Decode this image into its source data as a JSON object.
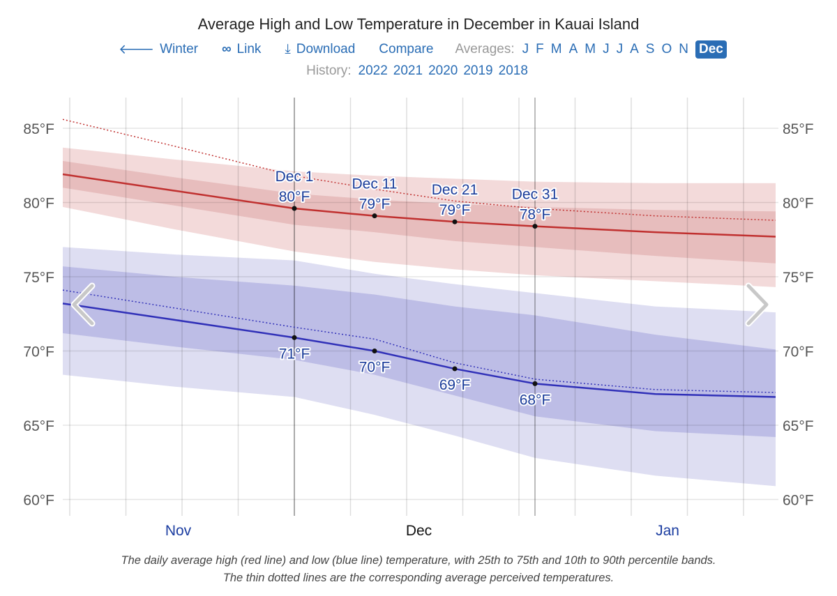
{
  "header": {
    "title": "Average High and Low Temperature in December in Kauai Island",
    "nav": {
      "winter": "Winter",
      "link": "Link",
      "download": "Download",
      "compare": "Compare",
      "averages_label": "Averages:"
    },
    "months": [
      "J",
      "F",
      "M",
      "A",
      "M",
      "J",
      "J",
      "A",
      "S",
      "O",
      "N",
      "Dec"
    ],
    "active_month": "Dec",
    "history_label": "History:",
    "history_years": [
      "2022",
      "2021",
      "2020",
      "2019",
      "2018"
    ],
    "icons": {
      "winter": "arrow-left-icon",
      "link": "link-icon",
      "download": "download-icon",
      "prev": "chevron-left-icon",
      "next": "chevron-right-icon"
    }
  },
  "chart_data": {
    "type": "line",
    "title": "Average High and Low Temperature in December in Kauai Island",
    "y_ticks": [
      "60°F",
      "65°F",
      "70°F",
      "75°F",
      "80°F",
      "85°F"
    ],
    "y_tick_values": [
      60,
      65,
      70,
      75,
      80,
      85
    ],
    "ylim": [
      58.7,
      86.5
    ],
    "xlim": [
      "Nov 2",
      "Jan 30"
    ],
    "x_month_labels": [
      {
        "label": "Nov",
        "date": "Nov 16",
        "color": "#1a3ca0"
      },
      {
        "label": "Dec",
        "date": "Dec 16",
        "color": "#111111"
      },
      {
        "label": "Jan",
        "date": "Jan 16",
        "color": "#1a3ca0"
      }
    ],
    "grid": true,
    "x": [
      "Nov 2",
      "Nov 16",
      "Dec 1",
      "Dec 11",
      "Dec 21",
      "Dec 31",
      "Jan 15",
      "Jan 30"
    ],
    "series": [
      {
        "key": "high",
        "color": "#c0302f",
        "values": [
          81.9,
          80.8,
          79.6,
          79.1,
          78.7,
          78.4,
          78.0,
          77.7
        ]
      },
      {
        "key": "high_p25",
        "values": [
          81.0,
          79.8,
          78.5,
          78.0,
          77.4,
          77.0,
          76.4,
          75.9
        ]
      },
      {
        "key": "high_p75",
        "values": [
          82.8,
          81.7,
          80.6,
          80.2,
          79.9,
          79.7,
          79.5,
          79.4
        ]
      },
      {
        "key": "high_p10",
        "values": [
          79.7,
          78.2,
          76.7,
          76.0,
          75.5,
          75.1,
          74.7,
          74.3
        ]
      },
      {
        "key": "high_p90",
        "values": [
          83.7,
          82.9,
          82.1,
          81.8,
          81.6,
          81.4,
          81.3,
          81.3
        ]
      },
      {
        "key": "high_perceived",
        "color": "#c0302f",
        "values": [
          85.6,
          83.8,
          81.8,
          80.9,
          80.1,
          79.6,
          79.1,
          78.8
        ]
      },
      {
        "key": "low",
        "color": "#3030b8",
        "values": [
          73.2,
          72.1,
          70.9,
          70.0,
          68.8,
          67.8,
          67.1,
          66.9
        ]
      },
      {
        "key": "low_p25",
        "values": [
          71.2,
          70.3,
          69.4,
          68.4,
          67.0,
          65.6,
          64.6,
          64.2
        ]
      },
      {
        "key": "low_p75",
        "values": [
          75.7,
          75.0,
          74.4,
          73.8,
          73.0,
          72.4,
          71.1,
          70.1
        ]
      },
      {
        "key": "low_p10",
        "values": [
          68.4,
          67.6,
          66.9,
          65.7,
          64.3,
          62.8,
          61.6,
          60.9
        ]
      },
      {
        "key": "low_p90",
        "values": [
          77.0,
          76.5,
          76.1,
          75.2,
          74.5,
          73.9,
          73.0,
          72.6
        ]
      },
      {
        "key": "low_perceived",
        "color": "#3030b8",
        "values": [
          74.1,
          72.9,
          71.6,
          70.8,
          69.2,
          68.1,
          67.4,
          67.2
        ]
      }
    ],
    "band_colors": {
      "high_outer": "#f3dada",
      "high_inner": "#e7bdbd",
      "low_outer": "#dedef2",
      "low_inner": "#bdbde6"
    },
    "annotations": [
      {
        "date": "Dec 1",
        "label": "Dec 1",
        "high": 79.6,
        "high_label": "80°F",
        "low": 70.9,
        "low_label": "71°F"
      },
      {
        "date": "Dec 11",
        "label": "Dec 11",
        "high": 79.1,
        "high_label": "79°F",
        "low": 70.0,
        "low_label": "70°F"
      },
      {
        "date": "Dec 21",
        "label": "Dec 21",
        "high": 78.7,
        "high_label": "79°F",
        "low": 68.8,
        "low_label": "69°F"
      },
      {
        "date": "Dec 31",
        "label": "Dec 31",
        "high": 78.4,
        "high_label": "78°F",
        "low": 67.8,
        "low_label": "68°F"
      }
    ]
  },
  "caption": {
    "line1": "The daily average high (red line) and low (blue line) temperature, with 25th to 75th and 10th to 90th percentile bands.",
    "line2": "The thin dotted lines are the corresponding average perceived temperatures."
  }
}
